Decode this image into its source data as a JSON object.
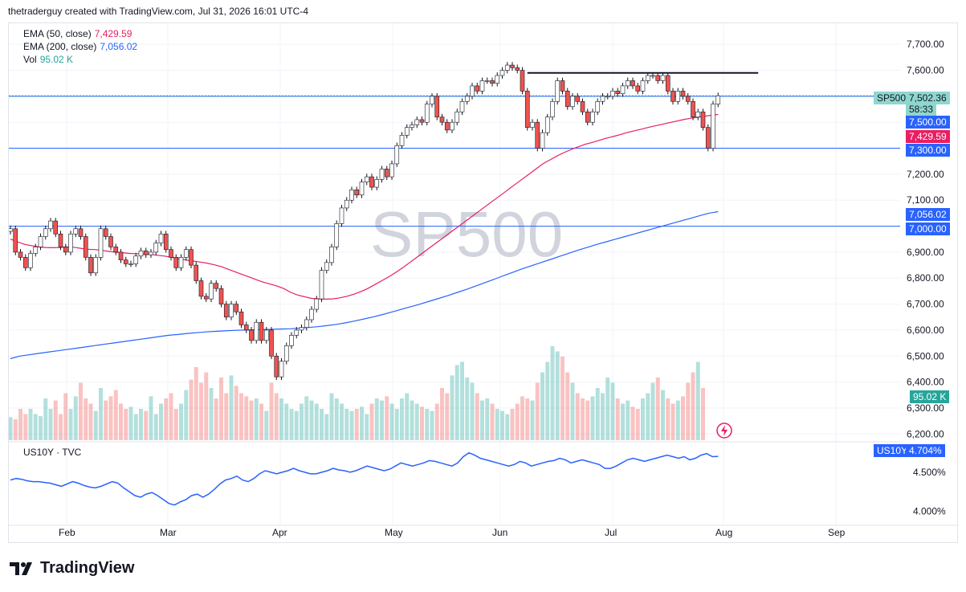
{
  "header": {
    "text": "thetraderguy created with TradingView.com, Jul 31, 2026 16:01 UTC-4"
  },
  "legend": {
    "ema50": {
      "label": "EMA (50, close)",
      "value": "7,429.59",
      "color": "#e91e63"
    },
    "ema200": {
      "label": "EMA (200, close)",
      "value": "7,056.02",
      "color": "#2962ff"
    },
    "vol": {
      "label": "Vol",
      "value": "95.02 K",
      "color": "#26a69a"
    }
  },
  "watermark": "SP500",
  "pane2": {
    "label": "US10Y · TVC"
  },
  "price_tags": {
    "symbol": "SP500",
    "last": "7,502.36",
    "countdown": "58:33",
    "lvl7500": "7,500.00",
    "ema50": "7,429.59",
    "lvl7300": "7,300.00",
    "ema200": "7,056.02",
    "lvl7000": "7,000.00",
    "vol": "95.02 K",
    "us10y_symbol": "US10Y",
    "us10y_value": "4.704%"
  },
  "footer": {
    "brand": "TradingView"
  },
  "chart_data": [
    {
      "type": "candlestick",
      "symbol": "SP500",
      "x_labels": [
        "Feb",
        "Mar",
        "Apr",
        "May",
        "Jun",
        "Jul",
        "Aug",
        "Sep"
      ],
      "y_ticks": [
        "7,700.00",
        "7,600.00",
        "7,500.00",
        "7,400.00",
        "7,300.00",
        "7,200.00",
        "7,100.00",
        "7,000.00",
        "6,900.00",
        "6,800.00",
        "6,700.00",
        "6,600.00",
        "6,500.00",
        "6,400.00",
        "6,300.00",
        "6,200.00"
      ],
      "ylim": [
        6170,
        7750
      ],
      "closes": [
        6990,
        6900,
        6880,
        6840,
        6895,
        6920,
        6960,
        6990,
        7020,
        6970,
        6920,
        6900,
        6970,
        6990,
        6960,
        6880,
        6820,
        6880,
        6990,
        6960,
        6920,
        6900,
        6870,
        6855,
        6855,
        6885,
        6905,
        6890,
        6900,
        6935,
        6970,
        6910,
        6880,
        6840,
        6880,
        6910,
        6850,
        6790,
        6730,
        6720,
        6780,
        6760,
        6700,
        6650,
        6700,
        6670,
        6620,
        6600,
        6560,
        6630,
        6560,
        6600,
        6500,
        6420,
        6480,
        6540,
        6580,
        6600,
        6610,
        6640,
        6680,
        6720,
        6830,
        6860,
        6920,
        7010,
        7070,
        7100,
        7140,
        7120,
        7170,
        7190,
        7150,
        7180,
        7220,
        7190,
        7240,
        7310,
        7350,
        7380,
        7390,
        7410,
        7400,
        7470,
        7500,
        7420,
        7400,
        7370,
        7400,
        7440,
        7480,
        7500,
        7540,
        7520,
        7560,
        7560,
        7550,
        7580,
        7600,
        7620,
        7610,
        7600,
        7520,
        7380,
        7400,
        7300,
        7360,
        7420,
        7480,
        7560,
        7520,
        7460,
        7500,
        7480,
        7440,
        7400,
        7440,
        7480,
        7500,
        7500,
        7520,
        7510,
        7540,
        7560,
        7540,
        7520,
        7560,
        7580,
        7580,
        7560,
        7580,
        7520,
        7480,
        7520,
        7500,
        7480,
        7420,
        7440,
        7380,
        7300,
        7470,
        7502
      ],
      "ema50": [
        6950,
        6940,
        6930,
        6925,
        6920,
        6918,
        6917,
        6918,
        6920,
        6919,
        6915,
        6911,
        6910,
        6907,
        6903,
        6900,
        6898,
        6895,
        6894,
        6893,
        6891,
        6888,
        6885,
        6880,
        6875,
        6870,
        6866,
        6862,
        6858,
        6852,
        6845,
        6835,
        6825,
        6815,
        6805,
        6795,
        6785,
        6778,
        6770,
        6760,
        6745,
        6735,
        6728,
        6722,
        6720,
        6719,
        6720,
        6724,
        6730,
        6738,
        6748,
        6760,
        6775,
        6790,
        6805,
        6822,
        6840,
        6860,
        6880,
        6900,
        6920,
        6940,
        6960,
        6980,
        7000,
        7020,
        7040,
        7060,
        7080,
        7100,
        7120,
        7140,
        7160,
        7180,
        7200,
        7220,
        7240,
        7255,
        7270,
        7283,
        7295,
        7305,
        7315,
        7322,
        7330,
        7338,
        7345,
        7352,
        7360,
        7367,
        7373,
        7380,
        7386,
        7392,
        7398,
        7404,
        7410,
        7415,
        7419,
        7423,
        7427,
        7430
      ],
      "ema200": [
        6490,
        6500,
        6505,
        6510,
        6515,
        6520,
        6525,
        6530,
        6535,
        6540,
        6545,
        6550,
        6555,
        6560,
        6565,
        6570,
        6575,
        6580,
        6583,
        6587,
        6590,
        6593,
        6595,
        6597,
        6599,
        6600,
        6601,
        6602,
        6603,
        6604,
        6605,
        6607,
        6610,
        6613,
        6617,
        6622,
        6628,
        6635,
        6643,
        6651,
        6660,
        6670,
        6680,
        6690,
        6700,
        6711,
        6722,
        6733,
        6745,
        6757,
        6770,
        6783,
        6796,
        6810,
        6823,
        6836,
        6848,
        6860,
        6872,
        6884,
        6896,
        6908,
        6919,
        6930,
        6940,
        6950,
        6960,
        6970,
        6980,
        6990,
        7000,
        7010,
        7020,
        7030,
        7040,
        7050,
        7056
      ],
      "levels": [
        7500,
        7300,
        7000
      ],
      "resistance_line": 7590
    },
    {
      "type": "bar",
      "name": "Vol",
      "last_value": "95.02 K",
      "values": [
        22,
        20,
        30,
        25,
        30,
        25,
        23,
        40,
        30,
        38,
        25,
        45,
        30,
        42,
        55,
        40,
        35,
        28,
        50,
        38,
        42,
        48,
        35,
        30,
        32,
        25,
        30,
        28,
        42,
        25,
        35,
        40,
        45,
        30,
        35,
        48,
        58,
        70,
        55,
        65,
        50,
        40,
        60,
        45,
        62,
        52,
        45,
        42,
        38,
        40,
        35,
        28,
        55,
        45,
        40,
        35,
        30,
        28,
        35,
        42,
        38,
        35,
        30,
        25,
        45,
        40,
        35,
        30,
        28,
        30,
        32,
        25,
        35,
        40,
        38,
        42,
        35,
        30,
        40,
        45,
        38,
        35,
        32,
        30,
        28,
        35,
        50,
        45,
        62,
        72,
        75,
        60,
        55,
        45,
        38,
        40,
        35,
        30,
        28,
        25,
        30,
        35,
        42,
        40,
        38,
        55,
        65,
        75,
        90,
        85,
        80,
        65,
        55,
        45,
        40,
        38,
        42,
        50,
        45,
        60,
        55,
        40,
        35,
        38,
        32,
        30,
        40,
        45,
        55,
        60,
        48,
        40,
        35,
        38,
        42,
        55,
        65,
        75,
        50
      ],
      "colors_up": "#26a69a",
      "colors_down": "#ef5350"
    },
    {
      "type": "line",
      "name": "US10Y",
      "y_ticks": [
        "4.500%",
        "4.000%"
      ],
      "ylim": [
        3.85,
        4.85
      ],
      "values": [
        4.4,
        4.42,
        4.41,
        4.39,
        4.38,
        4.38,
        4.37,
        4.36,
        4.34,
        4.32,
        4.35,
        4.38,
        4.36,
        4.33,
        4.31,
        4.3,
        4.32,
        4.35,
        4.38,
        4.36,
        4.3,
        4.25,
        4.2,
        4.18,
        4.22,
        4.24,
        4.2,
        4.15,
        4.1,
        4.08,
        4.12,
        4.15,
        4.2,
        4.22,
        4.18,
        4.22,
        4.28,
        4.35,
        4.4,
        4.42,
        4.45,
        4.4,
        4.38,
        4.42,
        4.48,
        4.52,
        4.5,
        4.48,
        4.5,
        4.52,
        4.55,
        4.52,
        4.5,
        4.48,
        4.48,
        4.5,
        4.52,
        4.55,
        4.53,
        4.52,
        4.5,
        4.52,
        4.55,
        4.58,
        4.56,
        4.54,
        4.52,
        4.54,
        4.58,
        4.62,
        4.6,
        4.58,
        4.6,
        4.62,
        4.65,
        4.64,
        4.62,
        4.6,
        4.58,
        4.62,
        4.7,
        4.75,
        4.72,
        4.68,
        4.66,
        4.64,
        4.62,
        4.6,
        4.58,
        4.6,
        4.64,
        4.62,
        4.58,
        4.6,
        4.62,
        4.64,
        4.65,
        4.68,
        4.66,
        4.62,
        4.64,
        4.66,
        4.64,
        4.62,
        4.6,
        4.55,
        4.55,
        4.58,
        4.62,
        4.66,
        4.68,
        4.66,
        4.64,
        4.66,
        4.68,
        4.7,
        4.72,
        4.7,
        4.68,
        4.7,
        4.66,
        4.68,
        4.72,
        4.74,
        4.7,
        4.704
      ],
      "last_value": "4.704%"
    }
  ],
  "colors": {
    "up": "#26a69a",
    "down": "#ef5350",
    "ema50": "#e91e63",
    "ema200": "#2962ff",
    "level": "#2962ff",
    "resistance": "#131722",
    "us10y": "#2962ff"
  }
}
